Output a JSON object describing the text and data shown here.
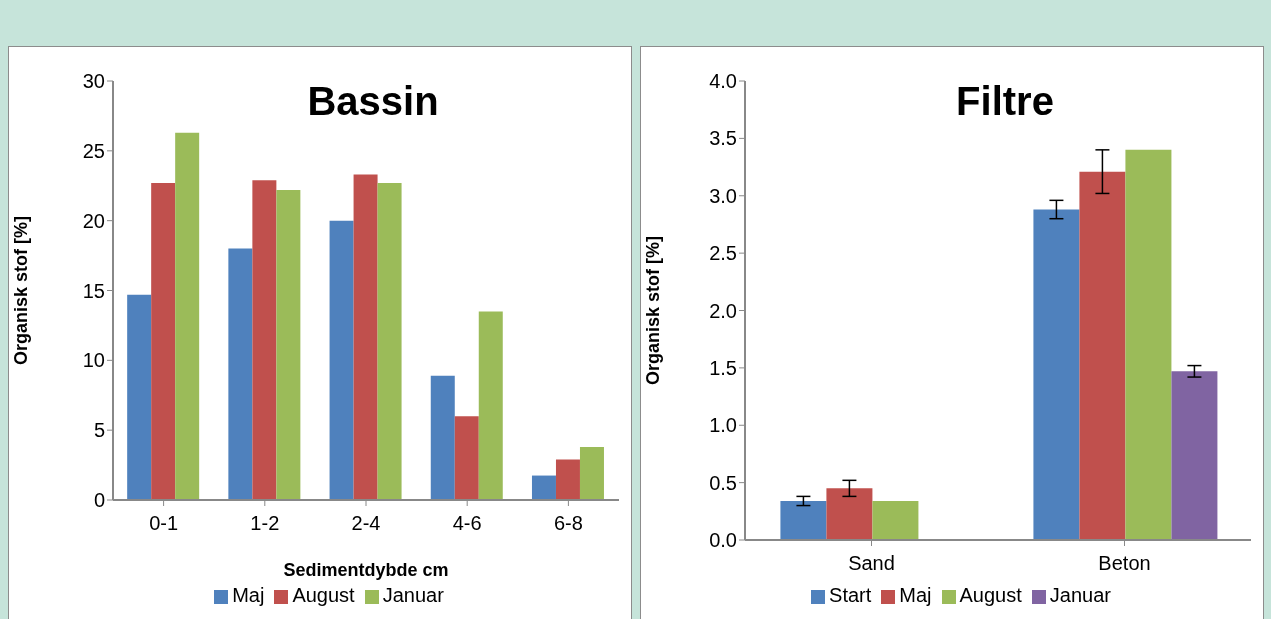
{
  "chart_data": [
    {
      "type": "bar",
      "title": "Bassin",
      "xlabel": "Sedimentdybde cm",
      "ylabel": "Organisk stof [%]",
      "categories": [
        "0-1",
        "1-2",
        "2-4",
        "4-6",
        "6-8"
      ],
      "series": [
        {
          "name": "Maj",
          "color": "#4f81bd",
          "values": [
            14.7,
            18.0,
            20.0,
            8.9,
            1.75
          ]
        },
        {
          "name": "August",
          "color": "#c0504d",
          "values": [
            22.7,
            22.9,
            23.3,
            6.0,
            2.9
          ]
        },
        {
          "name": "Januar",
          "color": "#9bbb59",
          "values": [
            26.3,
            22.2,
            22.7,
            13.5,
            3.8
          ]
        }
      ],
      "ylim": [
        0,
        30
      ],
      "yticks": [
        0,
        5,
        10,
        15,
        20,
        25,
        30
      ],
      "grid": false,
      "legend": "bottom"
    },
    {
      "type": "bar",
      "title": "Filtre",
      "ylabel": "Organisk stof [%]",
      "categories": [
        "Sand",
        "Beton"
      ],
      "series": [
        {
          "name": "Start",
          "color": "#4f81bd",
          "values": [
            0.34,
            2.88
          ],
          "errors": [
            0.04,
            0.08
          ]
        },
        {
          "name": "Maj",
          "color": "#c0504d",
          "values": [
            0.45,
            3.21
          ],
          "errors": [
            0.07,
            0.19
          ]
        },
        {
          "name": "August",
          "color": "#9bbb59",
          "values": [
            0.34,
            3.4
          ],
          "errors": [
            null,
            null
          ]
        },
        {
          "name": "Januar",
          "color": "#8064a2",
          "values": [
            null,
            1.47
          ],
          "errors": [
            null,
            0.05
          ]
        }
      ],
      "ylim": [
        0,
        4
      ],
      "yticks": [
        {
          "value": 0,
          "label": "0.0"
        },
        {
          "value": 0.5,
          "label": "0.5"
        },
        {
          "value": 1,
          "label": "1.0"
        },
        {
          "value": 1.5,
          "label": "1.5"
        },
        {
          "value": 2,
          "label": "2.0"
        },
        {
          "value": 2.5,
          "label": "2.5"
        },
        {
          "value": 3,
          "label": "3.0"
        },
        {
          "value": 3.5,
          "label": "3.5"
        },
        {
          "value": 4,
          "label": "4.0"
        }
      ],
      "grid": false,
      "legend": "bottom"
    }
  ]
}
